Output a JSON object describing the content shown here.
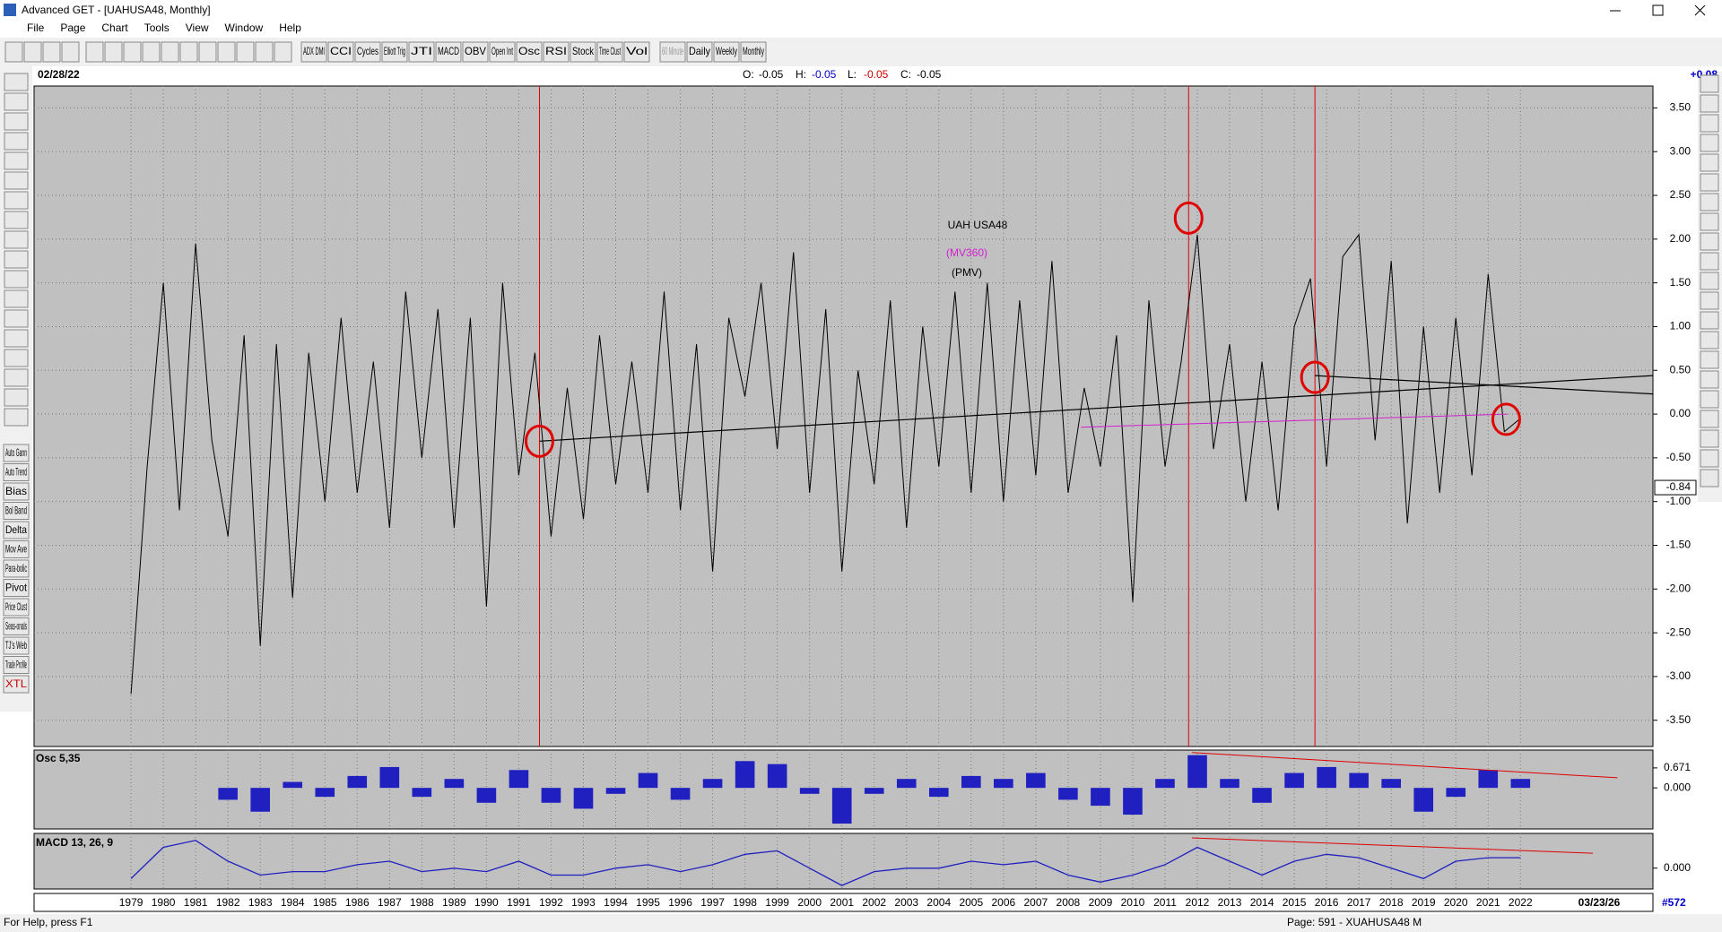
{
  "window": {
    "title": "Advanced GET - [UAHUSA48, Monthly]"
  },
  "menu": [
    "File",
    "Page",
    "Chart",
    "Tools",
    "View",
    "Window",
    "Help"
  ],
  "toolbar": [
    "ADX DMI",
    "CCI",
    "Cycles",
    "Elliott Trig",
    "JTI",
    "MACD",
    "OBV",
    "Open Int",
    "Osc",
    "RSI",
    "Stock",
    "Time Clust",
    "Vol",
    "60 Minute",
    "Daily",
    "Weekly",
    "Monthly"
  ],
  "left_tools": [
    "Auto Gann",
    "Auto Trend",
    "Bias",
    "Bol Band",
    "Delta",
    "Mov Ave",
    "Para-bolic",
    "Pivot",
    "Price Clust",
    "Seas-onals",
    "TJ's Web",
    "Trade Profile",
    "XTL"
  ],
  "header": {
    "date": "02/28/22",
    "ohlc": [
      {
        "label": "O:",
        "value": -0.05,
        "color": "#000000"
      },
      {
        "label": "H:",
        "value": -0.05,
        "color": "#0000cc"
      },
      {
        "label": "L:",
        "value": -0.05,
        "color": "#cc0000"
      },
      {
        "label": "C:",
        "value": -0.05,
        "color": "#000000"
      }
    ],
    "change": "+0.08",
    "end_date": "03/23/26",
    "count": "#572"
  },
  "status": {
    "help": "For Help, press F1",
    "page": "Page: 591 - XUAHUSA48 M"
  },
  "chart_data": [
    {
      "type": "line",
      "title": "UAH USA48",
      "grid": true,
      "xlim": [
        1976,
        2026.1
      ],
      "ylim": [
        -3.8,
        3.75
      ],
      "xticks": [
        1979,
        1980,
        1981,
        1982,
        1983,
        1984,
        1985,
        1986,
        1987,
        1988,
        1989,
        1990,
        1991,
        1992,
        1993,
        1994,
        1995,
        1996,
        1997,
        1998,
        1999,
        2000,
        2001,
        2002,
        2003,
        2004,
        2005,
        2006,
        2007,
        2008,
        2009,
        2010,
        2011,
        2012,
        2013,
        2014,
        2015,
        2016,
        2017,
        2018,
        2019,
        2020,
        2021,
        2022
      ],
      "yticks": [
        {
          "value": 3.5,
          "label": "3.50"
        },
        {
          "value": 3,
          "label": "3.00"
        },
        {
          "value": 2.5,
          "label": "2.50"
        },
        {
          "value": 2,
          "label": "2.00"
        },
        {
          "value": 1.5,
          "label": "1.50"
        },
        {
          "value": 1,
          "label": "1.00"
        },
        {
          "value": 0.5,
          "label": "0.50"
        },
        {
          "value": 0,
          "label": "0.00"
        },
        {
          "value": -0.5,
          "label": "-0.50"
        },
        {
          "value": -1,
          "label": "-1.00"
        },
        {
          "value": -1.5,
          "label": "-1.50"
        },
        {
          "value": -2,
          "label": "-2.00"
        },
        {
          "value": -2.5,
          "label": "-2.50"
        },
        {
          "value": -3,
          "label": "-3.00"
        },
        {
          "value": -3.5,
          "label": "-3.50"
        }
      ],
      "series": [
        {
          "name": "(PMV)",
          "color": "#000000",
          "x": [
            1979,
            1979.5,
            1980,
            1980.5,
            1981,
            1981.5,
            1982,
            1982.5,
            1983,
            1983.5,
            1984,
            1984.5,
            1985,
            1985.5,
            1986,
            1986.5,
            1987,
            1987.5,
            1988,
            1988.5,
            1989,
            1989.5,
            1990,
            1990.5,
            1991,
            1991.5,
            1992,
            1992.5,
            1993,
            1993.5,
            1994,
            1994.5,
            1995,
            1995.5,
            1996,
            1996.5,
            1997,
            1997.5,
            1998,
            1998.5,
            1999,
            1999.5,
            2000,
            2000.5,
            2001,
            2001.5,
            2002,
            2002.5,
            2003,
            2003.5,
            2004,
            2004.5,
            2005,
            2005.5,
            2006,
            2006.5,
            2007,
            2007.5,
            2008,
            2008.5,
            2009,
            2009.5,
            2010,
            2010.5,
            2011,
            2011.5,
            2012,
            2012.5,
            2013,
            2013.5,
            2014,
            2014.5,
            2015,
            2015.5,
            2016,
            2016.5,
            2017,
            2017.5,
            2018,
            2018.5,
            2019,
            2019.5,
            2020,
            2020.5,
            2021,
            2021.5,
            2022
          ],
          "values": [
            -3.2,
            -0.6,
            1.5,
            -1.1,
            1.95,
            -0.3,
            -1.4,
            0.9,
            -2.65,
            0.8,
            -2.1,
            0.7,
            -1.0,
            1.1,
            -0.9,
            0.6,
            -1.3,
            1.4,
            -0.5,
            1.2,
            -1.3,
            1.1,
            -2.2,
            1.5,
            -0.7,
            0.7,
            -1.4,
            0.3,
            -1.2,
            0.9,
            -0.8,
            0.6,
            -0.9,
            1.4,
            -1.1,
            0.8,
            -1.8,
            1.1,
            0.2,
            1.5,
            -0.4,
            1.85,
            -0.9,
            1.2,
            -1.8,
            0.5,
            -0.8,
            1.3,
            -1.3,
            1.0,
            -0.6,
            1.4,
            -0.9,
            1.5,
            -1.0,
            1.3,
            -0.7,
            1.75,
            -0.9,
            0.3,
            -0.6,
            0.9,
            -2.15,
            1.3,
            -0.6,
            0.6,
            2.05,
            -0.4,
            0.8,
            -1.0,
            0.6,
            -1.1,
            1.0,
            1.55,
            -0.6,
            1.8,
            2.05,
            -0.3,
            1.75,
            -1.25,
            1.0,
            -0.9,
            1.1,
            -0.7,
            1.6,
            -0.2,
            -0.05
          ]
        },
        {
          "name": "(MV360)",
          "color": "#d020d0",
          "x": [
            2008.4,
            2021.6
          ],
          "values": [
            -0.15,
            0.0
          ]
        }
      ],
      "last_value": -0.84,
      "trend_lines": [
        {
          "color": "#000000",
          "x": [
            1991.64,
            2026.1
          ],
          "values": [
            -0.31,
            0.44
          ]
        },
        {
          "color": "#000000",
          "x": [
            2015.64,
            2026.1
          ],
          "values": [
            0.44,
            0.23
          ]
        }
      ],
      "vlines": {
        "color": "#e00000",
        "x": [
          1991.64,
          2011.73,
          2015.64
        ]
      },
      "markers": {
        "color": "#e00000",
        "x": [
          1991.64,
          2011.73,
          2015.64,
          2021.56
        ],
        "values": [
          -0.31,
          2.24,
          0.42,
          -0.06
        ]
      }
    },
    {
      "type": "bar",
      "title": "Osc 5,35",
      "color": "#2020c0",
      "ylim": [
        -1.38,
        1.27
      ],
      "yticks": [
        {
          "value": 0.671,
          "label": "0.671"
        },
        {
          "value": 0,
          "label": "0.000"
        }
      ],
      "x": [
        1982,
        1983,
        1984,
        1985,
        1986,
        1987,
        1988,
        1989,
        1990,
        1991,
        1992,
        1993,
        1994,
        1995,
        1996,
        1997,
        1998,
        1999,
        2000,
        2001,
        2002,
        2003,
        2004,
        2005,
        2006,
        2007,
        2008,
        2009,
        2010,
        2011,
        2012,
        2013,
        2014,
        2015,
        2016,
        2017,
        2018,
        2019,
        2020,
        2021,
        2022
      ],
      "values": [
        -0.4,
        -0.8,
        0.2,
        -0.3,
        0.4,
        0.7,
        -0.3,
        0.3,
        -0.5,
        0.6,
        -0.5,
        -0.7,
        -0.2,
        0.5,
        -0.4,
        0.3,
        0.9,
        0.8,
        -0.2,
        -1.2,
        -0.2,
        0.3,
        -0.3,
        0.4,
        0.3,
        0.5,
        -0.4,
        -0.6,
        -0.9,
        0.3,
        1.1,
        0.3,
        -0.5,
        0.5,
        0.7,
        0.5,
        0.3,
        -0.8,
        -0.3,
        0.6,
        0.3
      ],
      "trend_line": {
        "color": "#e00000",
        "x": [
          2011.83,
          2025.0
        ],
        "values": [
          1.19,
          0.34
        ]
      }
    },
    {
      "type": "line",
      "title": "MACD 13, 26, 9",
      "color": "#2020c0",
      "ylim": [
        -0.6,
        1.0
      ],
      "yticks": [
        {
          "value": 0,
          "label": "0.000"
        }
      ],
      "x": [
        1979,
        1980,
        1981,
        1982,
        1983,
        1984,
        1985,
        1986,
        1987,
        1988,
        1989,
        1990,
        1991,
        1992,
        1993,
        1994,
        1995,
        1996,
        1997,
        1998,
        1999,
        2000,
        2001,
        2002,
        2003,
        2004,
        2005,
        2006,
        2007,
        2008,
        2009,
        2010,
        2011,
        2012,
        2013,
        2014,
        2015,
        2016,
        2017,
        2018,
        2019,
        2020,
        2021,
        2022
      ],
      "values": [
        -0.3,
        0.6,
        0.8,
        0.2,
        -0.2,
        -0.1,
        -0.1,
        0.1,
        0.2,
        -0.1,
        0.0,
        -0.1,
        0.2,
        -0.2,
        -0.2,
        0.0,
        0.1,
        -0.1,
        0.1,
        0.4,
        0.5,
        0.0,
        -0.5,
        -0.1,
        0.0,
        0.0,
        0.2,
        0.1,
        0.2,
        -0.2,
        -0.4,
        -0.2,
        0.1,
        0.6,
        0.2,
        -0.2,
        0.2,
        0.4,
        0.3,
        0.0,
        -0.3,
        0.2,
        0.3,
        0.3
      ],
      "trend_line": {
        "color": "#e00000",
        "x": [
          2011.83,
          2024.24
        ],
        "values": [
          0.87,
          0.43
        ]
      }
    }
  ]
}
